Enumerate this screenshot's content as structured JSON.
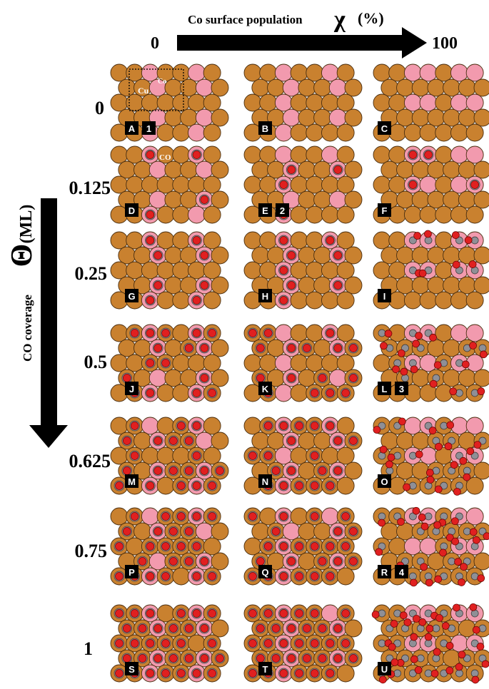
{
  "header": {
    "axis_label": "Co surface population",
    "symbol": "χ",
    "unit": "(%)",
    "start": "0",
    "end": "100"
  },
  "side": {
    "axis_label": "CO coverage",
    "symbol": "Θ",
    "unit": "(ML)"
  },
  "row_labels": [
    "0",
    "0.125",
    "0.25",
    "0.5",
    "0.625",
    "0.75",
    "1"
  ],
  "inset_labels": {
    "cu": "Cu",
    "co": "Co",
    "co_molecule": "CO"
  },
  "colors": {
    "cu_atom": "#c9812f",
    "co_atom": "#f29aae",
    "oxygen": "#e02020",
    "carbon": "#8f8f96",
    "label_bg": "#000000",
    "label_text": "#ffffff"
  },
  "panels": [
    {
      "letter": "A",
      "number": "1"
    },
    {
      "letter": "B"
    },
    {
      "letter": "C"
    },
    {
      "letter": "D"
    },
    {
      "letter": "E",
      "number": "2"
    },
    {
      "letter": "F"
    },
    {
      "letter": "G"
    },
    {
      "letter": "H"
    },
    {
      "letter": "I"
    },
    {
      "letter": "J"
    },
    {
      "letter": "K"
    },
    {
      "letter": "L",
      "number": "3"
    },
    {
      "letter": "M"
    },
    {
      "letter": "N"
    },
    {
      "letter": "O"
    },
    {
      "letter": "P"
    },
    {
      "letter": "Q"
    },
    {
      "letter": "R",
      "number": "4"
    },
    {
      "letter": "S"
    },
    {
      "letter": "T"
    },
    {
      "letter": "U"
    }
  ]
}
